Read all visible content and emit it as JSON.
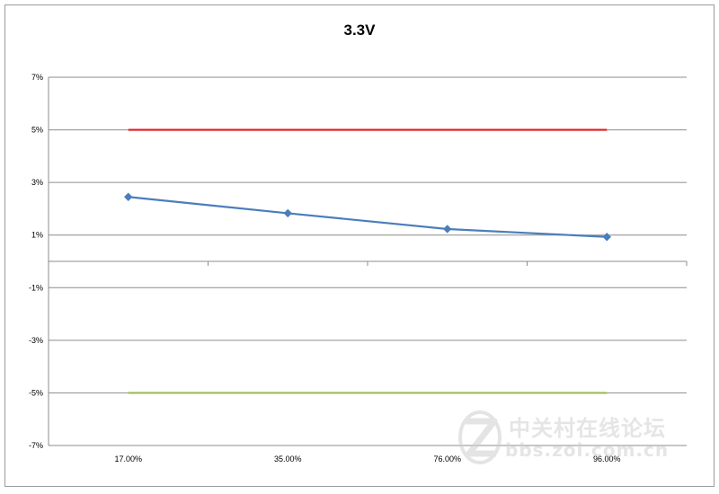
{
  "chart_data": {
    "type": "line",
    "title": "3.3V",
    "categories": [
      "17.00%",
      "35.00%",
      "76.00%",
      "96.00%"
    ],
    "y_tick_labels": [
      "7%",
      "5%",
      "3%",
      "1%",
      "-1%",
      "-3%",
      "-5%",
      "-7%"
    ],
    "ylim": [
      -7,
      7
    ],
    "grid": true,
    "series": [
      {
        "values": [
          2.45,
          1.83,
          1.23,
          0.93
        ],
        "color": "#4a7ebb",
        "marker": "diamond"
      },
      {
        "values": [
          5,
          5,
          5,
          5
        ],
        "color": "#e31a1c"
      },
      {
        "values": [
          -5,
          -5,
          -5,
          -5
        ],
        "color": "#9bbb59"
      }
    ]
  },
  "watermark": {
    "text_cn": "中关村在线论坛",
    "url": "bbs.zol.com.cn"
  }
}
